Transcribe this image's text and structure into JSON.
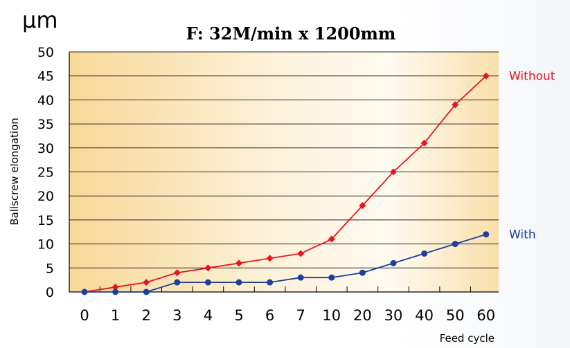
{
  "chart_data": {
    "type": "line",
    "title": "F: 32M/min x 1200mm",
    "unit": "μm",
    "xlabel": "Feed cycle",
    "ylabel": "Ballscrew elongation",
    "categories": [
      "0",
      "1",
      "2",
      "3",
      "4",
      "5",
      "6",
      "7",
      "10",
      "20",
      "30",
      "40",
      "50",
      "60"
    ],
    "yticks": [
      "0",
      "5",
      "10",
      "15",
      "20",
      "25",
      "30",
      "35",
      "40",
      "45",
      "50"
    ],
    "ylim": [
      0,
      50
    ],
    "grid": true,
    "series": [
      {
        "name": "Without",
        "color": "#e8141e",
        "marker": "diamond",
        "values": [
          0,
          1,
          2,
          4,
          5,
          6,
          7,
          8,
          11,
          18,
          25,
          31,
          39,
          45
        ]
      },
      {
        "name": "With",
        "color": "#1c3f9c",
        "marker": "circle",
        "values": [
          0,
          0,
          0,
          2,
          2,
          2,
          2,
          3,
          3,
          4,
          6,
          8,
          10,
          12
        ]
      }
    ]
  }
}
